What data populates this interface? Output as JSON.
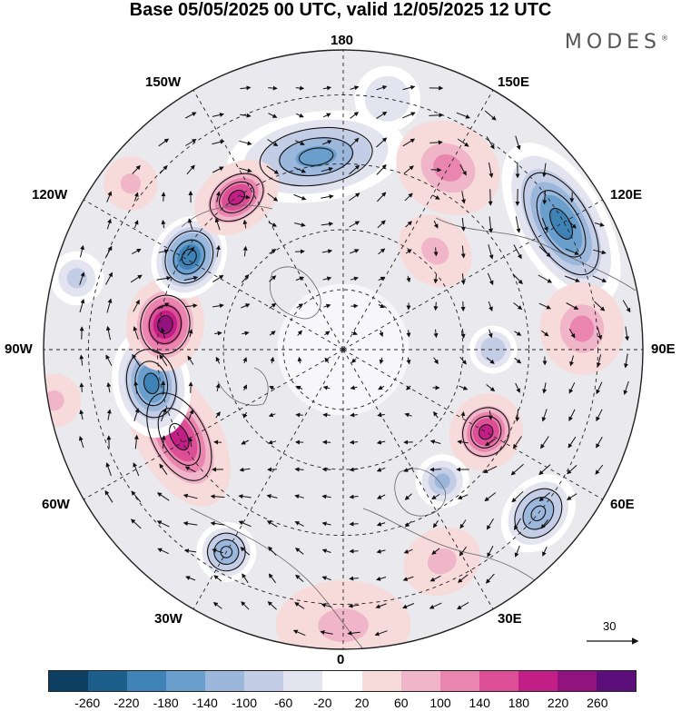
{
  "title": "Base 05/05/2025 00 UTC, valid 12/05/2025 12 UTC",
  "brand": "MODES",
  "brand_mark": "®",
  "longitude_labels": {
    "top": "180",
    "bottom": "0",
    "left": "90W",
    "right": "90E",
    "nw_upper": "150W",
    "nw_lower": "120W",
    "sw_upper": "60W",
    "sw_lower": "30W",
    "ne_upper": "150E",
    "ne_lower": "120E",
    "se_upper": "60E",
    "se_lower": "30E"
  },
  "reference_vector": "30",
  "colorbar": {
    "colors": [
      "#0d3f63",
      "#1c5f8d",
      "#3f82b6",
      "#6a9fcd",
      "#9bb7dc",
      "#c4cde6",
      "#e4e4f0",
      "#ffffff",
      "#f7dada",
      "#f0b5c8",
      "#e985af",
      "#dc4f97",
      "#c21f86",
      "#92127f",
      "#5c0f7a"
    ],
    "ticks": [
      "-260",
      "-220",
      "-180",
      "-140",
      "-100",
      "-60",
      "-20",
      "20",
      "60",
      "100",
      "140",
      "180",
      "220",
      "260"
    ]
  },
  "anomalies": [
    {
      "lon": -172,
      "r": 0.65,
      "value": -150,
      "size": 0.3,
      "elong": 2.0
    },
    {
      "lon": 170,
      "r": 0.85,
      "value": -60,
      "size": 0.22,
      "elong": 1.0
    },
    {
      "lon": 150,
      "r": 0.7,
      "value": 120,
      "size": 0.3,
      "elong": 1.2
    },
    {
      "lon": 120,
      "r": 0.84,
      "value": -200,
      "size": 0.3,
      "elong": 2.0
    },
    {
      "lon": 137,
      "r": 0.45,
      "value": 60,
      "size": 0.22,
      "elong": 1.2
    },
    {
      "lon": 95,
      "r": 0.8,
      "value": 110,
      "size": 0.28,
      "elong": 1.1
    },
    {
      "lon": 90,
      "r": 0.5,
      "value": -100,
      "size": 0.16,
      "elong": 1.0
    },
    {
      "lon": 60,
      "r": 0.55,
      "value": 180,
      "size": 0.24,
      "elong": 1.1
    },
    {
      "lon": 37,
      "r": 0.55,
      "value": -110,
      "size": 0.18,
      "elong": 1.0
    },
    {
      "lon": 50,
      "r": 0.85,
      "value": -140,
      "size": 0.22,
      "elong": 1.3
    },
    {
      "lon": 25,
      "r": 0.78,
      "value": 60,
      "size": 0.22,
      "elong": 1.2
    },
    {
      "lon": 0,
      "r": 0.92,
      "value": 70,
      "size": 0.3,
      "elong": 1.5
    },
    {
      "lon": -30,
      "r": 0.78,
      "value": -140,
      "size": 0.2,
      "elong": 1.0
    },
    {
      "lon": -62,
      "r": 0.62,
      "value": 180,
      "size": 0.28,
      "elong": 1.8
    },
    {
      "lon": -80,
      "r": 0.65,
      "value": -200,
      "size": 0.26,
      "elong": 1.4
    },
    {
      "lon": -80,
      "r": 0.98,
      "value": 90,
      "size": 0.18,
      "elong": 1.0
    },
    {
      "lon": -98,
      "r": 0.6,
      "value": 230,
      "size": 0.26,
      "elong": 1.2
    },
    {
      "lon": -121,
      "r": 0.6,
      "value": -220,
      "size": 0.24,
      "elong": 1.2
    },
    {
      "lon": -128,
      "r": 0.9,
      "value": 70,
      "size": 0.18,
      "elong": 1.0
    },
    {
      "lon": -145,
      "r": 0.62,
      "value": 190,
      "size": 0.22,
      "elong": 1.4
    },
    {
      "lon": -105,
      "r": 0.92,
      "value": -80,
      "size": 0.18,
      "elong": 1.0
    }
  ]
}
